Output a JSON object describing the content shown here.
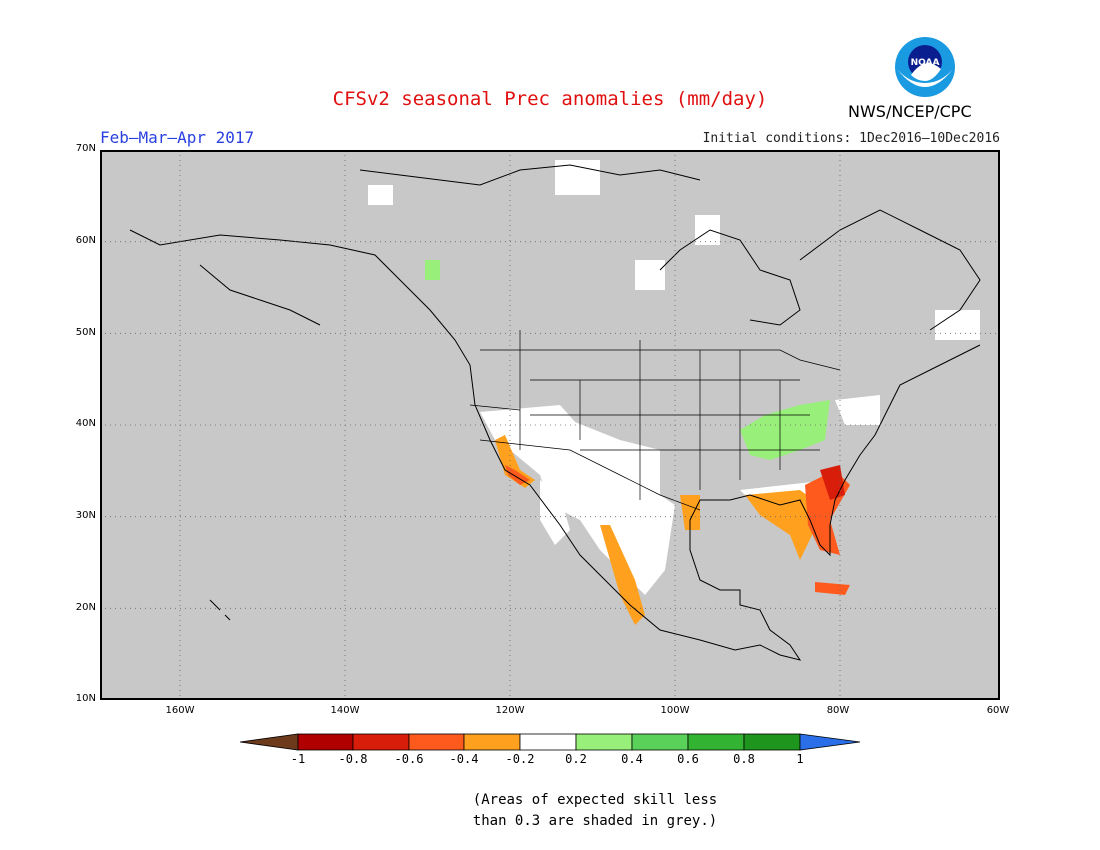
{
  "header": {
    "title": "CFSv2 seasonal Prec anomalies (mm/day)",
    "period": "Feb–Mar–Apr 2017",
    "initial_conditions": "Initial conditions: 1Dec2016–10Dec2016",
    "agency": "NWS/NCEP/CPC",
    "logo_text": "NOAA"
  },
  "map": {
    "projection": "lat-lon",
    "lat_range": [
      10,
      70
    ],
    "lon_range": [
      -172,
      -60
    ],
    "grid": "dotted",
    "background_color": "#c8c8c8",
    "lat_labels": [
      "70N",
      "60N",
      "50N",
      "40N",
      "30N",
      "20N",
      "10N"
    ],
    "lon_labels": [
      "160W",
      "140W",
      "120W",
      "100W",
      "80W",
      "60W"
    ],
    "anomaly_regions": [
      {
        "name": "West Coast / Southern California",
        "category": "-0.4 to -0.2"
      },
      {
        "name": "Southern California coast",
        "category": "-0.6 to -0.4"
      },
      {
        "name": "Southwest US / Northern Mexico",
        "category": "-0.2 to 0.2"
      },
      {
        "name": "West coast of Mexico",
        "category": "-0.4 to -0.2"
      },
      {
        "name": "Florida / Southeast coast",
        "category": "-0.6 to -0.4"
      },
      {
        "name": "Georgia / South Carolina coast",
        "category": "-0.8 to -0.6"
      },
      {
        "name": "Gulf Coast",
        "category": "-0.4 to -0.2"
      },
      {
        "name": "Ohio Valley",
        "category": "0.2 to 0.6"
      },
      {
        "name": "Cuba",
        "category": "-0.6 to -0.4"
      }
    ]
  },
  "legend": {
    "labels": [
      "-1",
      "-0.8",
      "-0.6",
      "-0.4",
      "-0.2",
      "0.2",
      "0.4",
      "0.6",
      "0.8",
      "1"
    ],
    "colors": [
      "#6e3a1c",
      "#b00000",
      "#d81e0a",
      "#ff5a1e",
      "#ffa01e",
      "#ffffff",
      "#98f07a",
      "#5ad25a",
      "#32b432",
      "#1e961e",
      "#2a6ee8"
    ]
  },
  "footnote": {
    "line1": "(Areas of expected skill less",
    "line2": "than 0.3 are shaded in grey.)"
  }
}
